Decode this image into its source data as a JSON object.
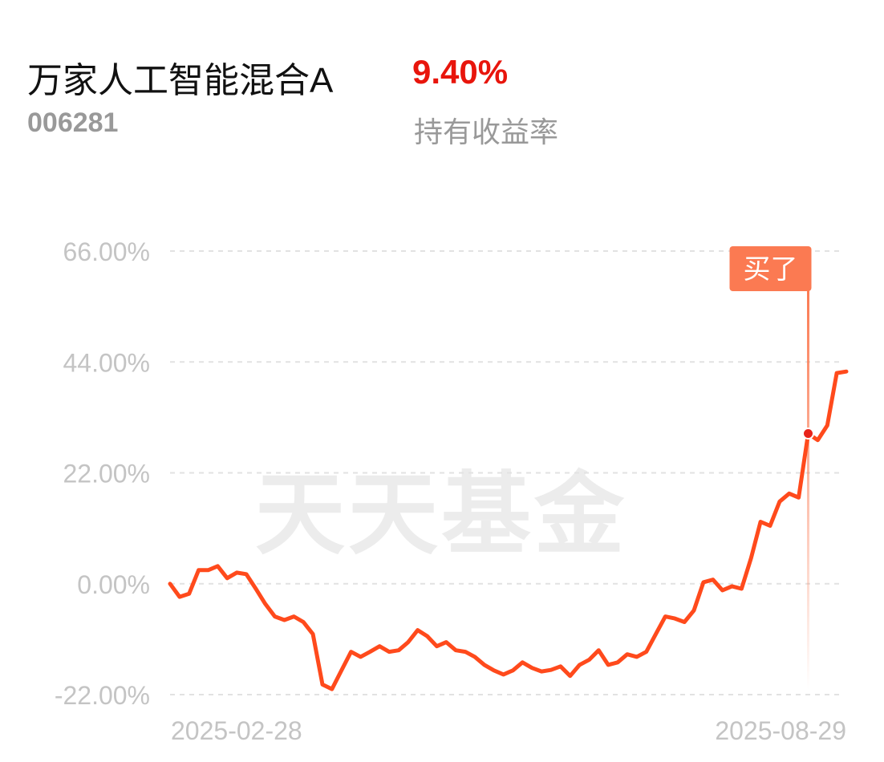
{
  "header": {
    "title": "万家人工智能混合A",
    "code": "006281",
    "return": "9.40%",
    "return_label": "持有收益率"
  },
  "chart_data": {
    "type": "line",
    "watermark": "天天基金",
    "categories": [
      "2025-02-28",
      null,
      null,
      null,
      null,
      null,
      null,
      null,
      null,
      null,
      null,
      null,
      null,
      null,
      null,
      null,
      null,
      null,
      null,
      null,
      null,
      null,
      null,
      null,
      null,
      null,
      null,
      null,
      null,
      null,
      null,
      null,
      null,
      null,
      null,
      null,
      null,
      null,
      null,
      null,
      null,
      null,
      null,
      null,
      null,
      null,
      null,
      null,
      null,
      null,
      null,
      null,
      null,
      null,
      null,
      null,
      null,
      null,
      null,
      null,
      null,
      null,
      null,
      null,
      null,
      null,
      null,
      null,
      null,
      null,
      null,
      "2025-08-29"
    ],
    "series": [
      {
        "color": "#ff4a1c",
        "values": [
          0,
          -2.6,
          -2,
          2.7,
          2.7,
          3.5,
          1.1,
          2.2,
          1.9,
          -1,
          -4,
          -6.5,
          -7.2,
          -6.5,
          -7.6,
          -10,
          -20,
          -20.9,
          -17.2,
          -13.5,
          -14.5,
          -13.5,
          -12.4,
          -13.5,
          -13.2,
          -11.6,
          -9.2,
          -10.4,
          -12.4,
          -11.6,
          -13.2,
          -13.5,
          -14.5,
          -16.1,
          -17.2,
          -18,
          -17.2,
          -15.6,
          -16.7,
          -17.4,
          -17.1,
          -16.4,
          -18.3,
          -16.1,
          -15.1,
          -13.2,
          -16.1,
          -15.6,
          -14,
          -14.5,
          -13.5,
          -10,
          -6.5,
          -6.9,
          -7.6,
          -5.3,
          0.3,
          0.8,
          -1.3,
          -0.5,
          -1,
          5.1,
          12.3,
          11.5,
          16.3,
          17.9,
          17.1,
          29.8,
          28.5,
          31.4,
          41.8,
          42.1
        ]
      }
    ],
    "ylim": [
      -22,
      66
    ],
    "yticks": [
      {
        "value": -22,
        "label": "-22.00%"
      },
      {
        "value": 0,
        "label": "0.00%"
      },
      {
        "value": 22,
        "label": "22.00%"
      },
      {
        "value": 44,
        "label": "44.00%"
      },
      {
        "value": 66,
        "label": "66.00%"
      }
    ],
    "grid": true,
    "annotation": {
      "text": "买了",
      "value": 29.8,
      "color": "#fb7a52"
    }
  }
}
